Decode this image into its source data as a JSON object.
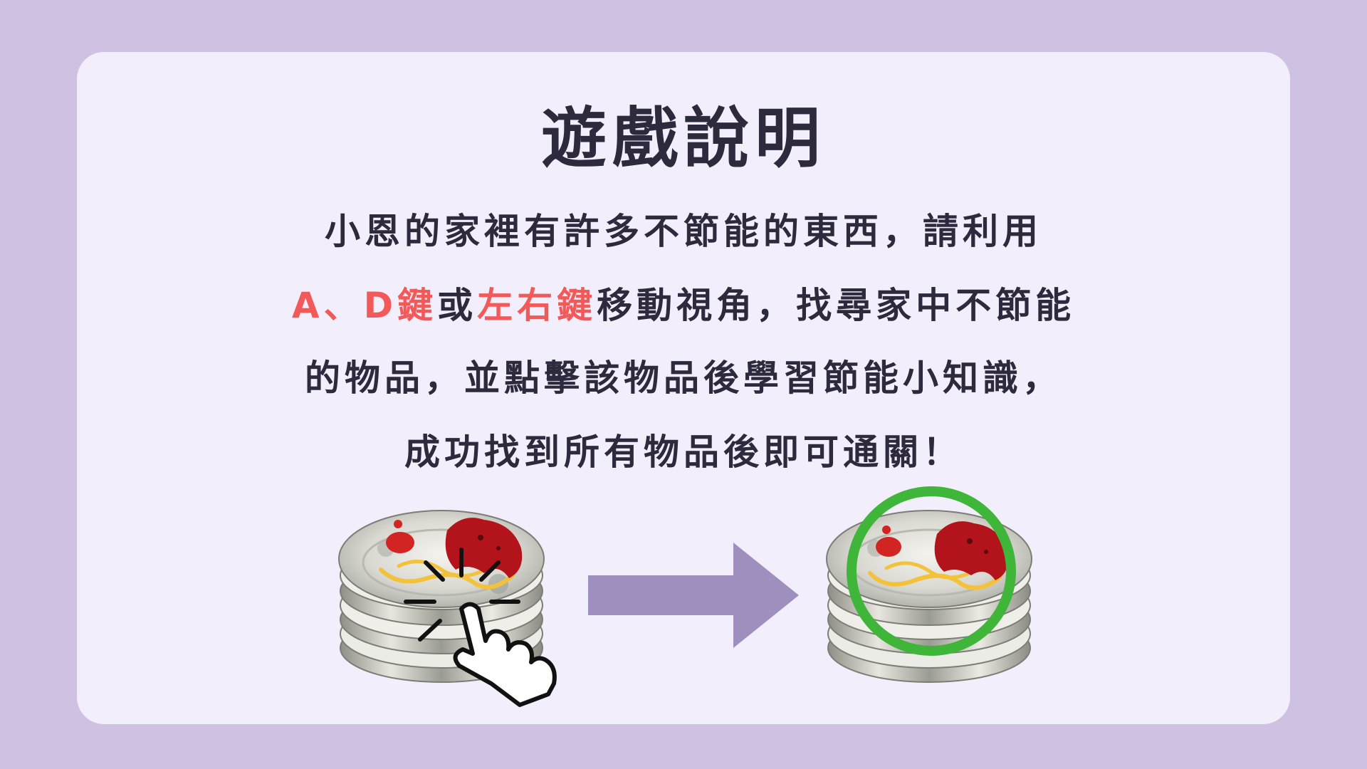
{
  "title": "遊戲說明",
  "instructions": {
    "line1": "小恩的家裡有許多不節能的東西，請利用",
    "line2_key1": "A、D鍵",
    "line2_or": "或",
    "line2_key2": "左右鍵",
    "line2_rest": "移動視角，找尋家中不節能",
    "line3": "的物品，並點擊該物品後學習節能小知識，",
    "line4": "成功找到所有物品後即可通關！"
  },
  "colors": {
    "background": "#cfc1e2",
    "card": "#f3eefb",
    "text": "#2d2a3e",
    "highlight": "#f25a5a",
    "arrow": "#9f8fbf",
    "found_ring": "#3fb53a"
  },
  "illustration": {
    "left_item_icon": "plate-stack-icon",
    "click_icon": "pointing-hand-click-icon",
    "arrow_icon": "right-arrow-icon",
    "right_item_icon": "plate-stack-found-icon",
    "found_marker_icon": "green-circle-icon"
  }
}
